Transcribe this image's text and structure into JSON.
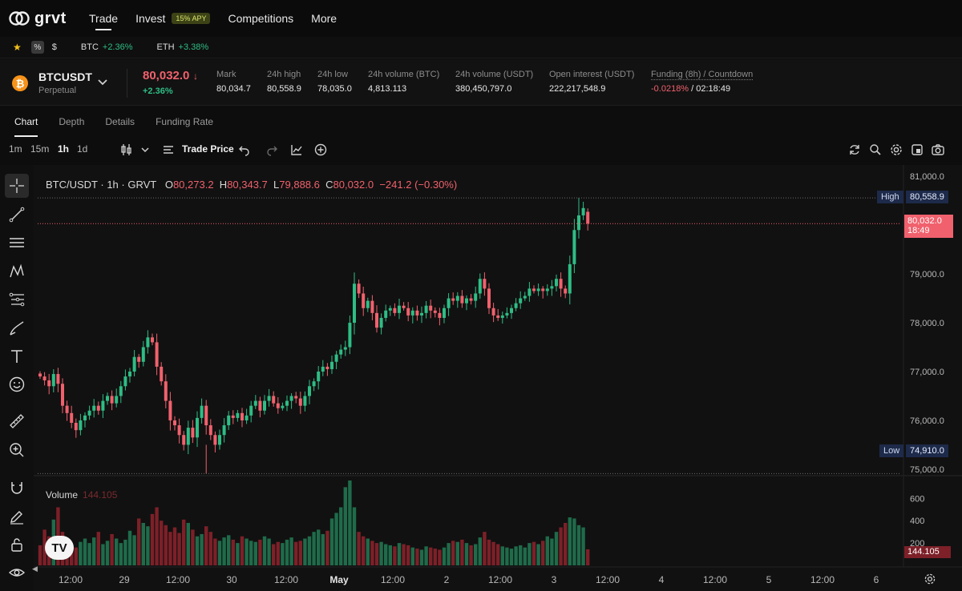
{
  "nav": {
    "logo": "grvt",
    "items": [
      {
        "label": "Trade",
        "active": true
      },
      {
        "label": "Invest",
        "badge": "15% APY"
      },
      {
        "label": "Competitions"
      },
      {
        "label": "More"
      }
    ]
  },
  "ticker": {
    "pct_label": "%",
    "dollar_label": "$",
    "pairs": [
      {
        "symbol": "BTC",
        "change": "+2.36%"
      },
      {
        "symbol": "ETH",
        "change": "+3.38%"
      }
    ]
  },
  "market": {
    "symbol": "BTCUSDT",
    "type": "Perpetual",
    "last_price": "80,032.0",
    "last_arrow": "↓",
    "change": "+2.36%",
    "stats": [
      {
        "label": "Mark",
        "value": "80,034.7"
      },
      {
        "label": "24h high",
        "value": "80,558.9"
      },
      {
        "label": "24h low",
        "value": "78,035.0"
      },
      {
        "label": "24h volume (BTC)",
        "value": "4,813.113"
      },
      {
        "label": "24h volume (USDT)",
        "value": "380,450,797.0"
      },
      {
        "label": "Open interest (USDT)",
        "value": "222,217,548.9"
      }
    ],
    "funding": {
      "label": "Funding (8h) / Countdown",
      "rate": "-0.0218%",
      "countdown": "/ 02:18:49"
    }
  },
  "tabs": [
    "Chart",
    "Depth",
    "Details",
    "Funding Rate"
  ],
  "toolbar": {
    "timeframes": [
      "1m",
      "15m",
      "1h",
      "1d"
    ],
    "active_timeframe": "1h",
    "price_source": "Trade Price"
  },
  "legend": {
    "title": "BTC/USDT · 1h · GRVT",
    "o_label": "O",
    "o": "80,273.2",
    "h_label": "H",
    "h": "80,343.7",
    "l_label": "L",
    "l": "79,888.6",
    "c_label": "C",
    "c": "80,032.0",
    "change": "−241.2 (−0.30%)"
  },
  "volume_legend": {
    "label": "Volume",
    "value": "144.105"
  },
  "markers": {
    "high_label": "High",
    "high_value": "80,558.9",
    "low_label": "Low",
    "low_value": "74,910.0",
    "current_price": "80,032.0",
    "countdown": "18:49",
    "volume_value": "144.105"
  },
  "colors": {
    "up": "#2ebd85",
    "down": "#f0616d",
    "vol_up": "#1f6b4a",
    "vol_down": "#7d2028",
    "bg": "#111111"
  },
  "chart_data": {
    "type": "candlestick",
    "price_axis": {
      "ticks": [
        "81,000.0",
        "79,000.0",
        "78,000.0",
        "77,000.0",
        "76,000.0",
        "75,000.0"
      ],
      "range": [
        74900,
        81200
      ]
    },
    "volume_axis": {
      "ticks": [
        "600",
        "400",
        "200"
      ],
      "range": [
        0,
        760
      ]
    },
    "x_ticks": [
      "12:00",
      "29",
      "12:00",
      "30",
      "12:00",
      "May",
      "12:00",
      "2",
      "12:00",
      "3",
      "12:00",
      "4",
      "12:00",
      "5",
      "12:00",
      "6"
    ],
    "closes": [
      76900,
      76820,
      76700,
      76950,
      76750,
      76300,
      76150,
      75950,
      75800,
      76000,
      76100,
      76200,
      76300,
      76200,
      76400,
      76500,
      76350,
      76500,
      76700,
      76900,
      77000,
      77300,
      77200,
      77500,
      77700,
      77600,
      77100,
      76800,
      76400,
      76000,
      75900,
      75700,
      75500,
      75850,
      75650,
      76050,
      76300,
      75900,
      75700,
      75500,
      75700,
      75900,
      76100,
      76050,
      76150,
      76000,
      76100,
      76300,
      76400,
      76200,
      76400,
      76500,
      76350,
      76250,
      76300,
      76400,
      76500,
      76450,
      76300,
      76500,
      76700,
      76800,
      77000,
      77100,
      77050,
      77200,
      77350,
      77450,
      77500,
      78000,
      78800,
      78600,
      78300,
      78450,
      78200,
      77900,
      78100,
      78250,
      78300,
      78200,
      78350,
      78300,
      78150,
      78250,
      78150,
      78200,
      78350,
      78250,
      78200,
      78100,
      78300,
      78500,
      78450,
      78550,
      78400,
      78500,
      78450,
      78600,
      78900,
      78700,
      78300,
      78150,
      78100,
      78150,
      78200,
      78300,
      78400,
      78500,
      78550,
      78700,
      78650,
      78700,
      78650,
      78700,
      78750,
      78900,
      78700,
      78600,
      79200,
      79900,
      80200,
      80350,
      80032
    ],
    "volumes": [
      180,
      320,
      260,
      410,
      520,
      300,
      220,
      190,
      160,
      210,
      240,
      200,
      250,
      300,
      190,
      220,
      280,
      240,
      200,
      230,
      310,
      270,
      420,
      380,
      350,
      460,
      520,
      400,
      360,
      300,
      340,
      290,
      410,
      380,
      320,
      260,
      280,
      350,
      300,
      240,
      220,
      250,
      270,
      230,
      200,
      260,
      240,
      220,
      210,
      230,
      260,
      240,
      190,
      210,
      200,
      230,
      250,
      210,
      220,
      240,
      260,
      300,
      320,
      280,
      310,
      420,
      470,
      520,
      700,
      760,
      520,
      300,
      260,
      240,
      220,
      200,
      210,
      190,
      180,
      170,
      200,
      190,
      180,
      160,
      150,
      140,
      170,
      160,
      150,
      140,
      160,
      200,
      220,
      210,
      230,
      200,
      180,
      190,
      250,
      300,
      230,
      210,
      190,
      170,
      160,
      150,
      170,
      180,
      160,
      200,
      210,
      190,
      220,
      260,
      240,
      300,
      340,
      380,
      430,
      420,
      360,
      340,
      144
    ]
  }
}
